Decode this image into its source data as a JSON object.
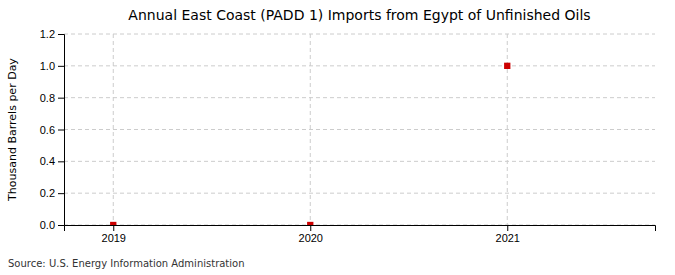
{
  "chart_data": {
    "type": "scatter",
    "title": "Annual East Coast (PADD 1) Imports from Egypt of Unfinished Oils",
    "ylabel": "Thousand Barrels per Day",
    "annotation": "Source: U.S. Energy Information Administration",
    "x": [
      2019,
      2020,
      2021
    ],
    "values": [
      0.0,
      0.0,
      1.0
    ],
    "color": "#cc0000",
    "marker": "square",
    "xlim": [
      2018.75,
      2021.75
    ],
    "xticks": [
      2019,
      2020,
      2021
    ],
    "ylim": [
      0.0,
      1.2
    ],
    "yticks": [
      {
        "value": 0.0,
        "label": "0.0"
      },
      0.2,
      0.4,
      0.6,
      0.8,
      {
        "value": 1.0,
        "label": "1.0"
      },
      1.2
    ],
    "grid": true
  }
}
